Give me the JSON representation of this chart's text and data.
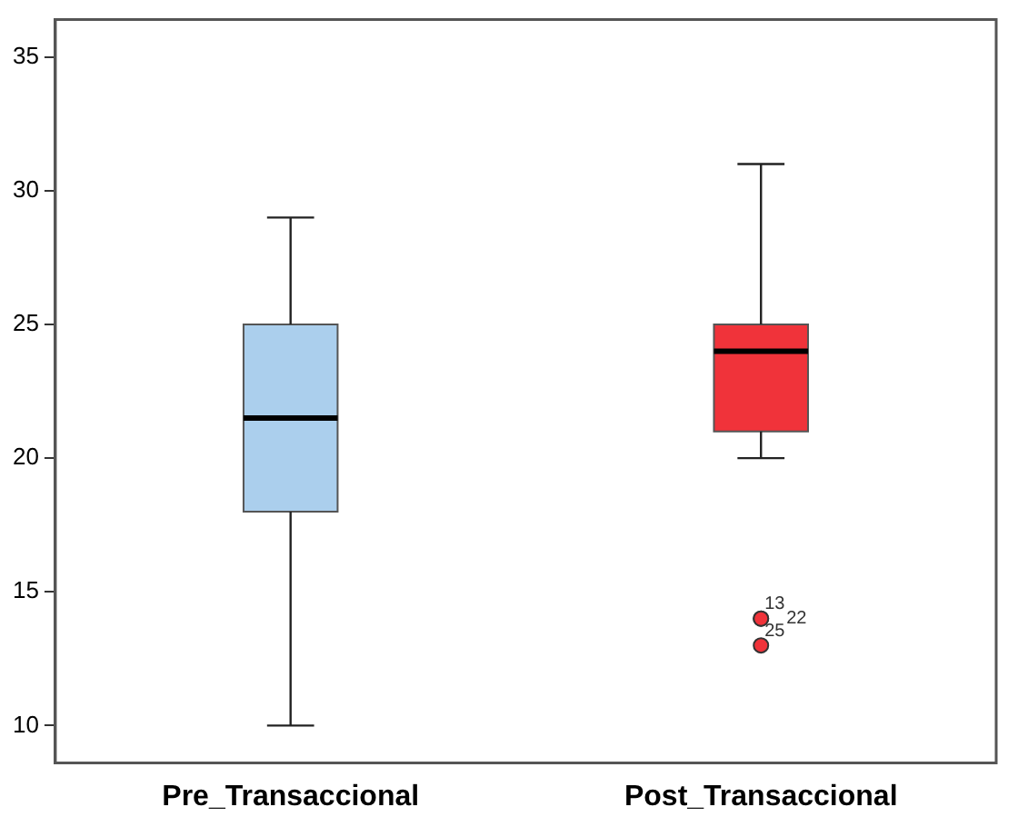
{
  "chart_data": {
    "type": "box",
    "categories": [
      "Pre_Transaccional",
      "Post_Transaccional"
    ],
    "colors": [
      "#abcfed",
      "#f0333a"
    ],
    "boxes": [
      {
        "low": 10,
        "q1": 18,
        "median": 21.5,
        "q3": 25,
        "high": 29
      },
      {
        "low": 20,
        "q1": 21,
        "median": 24,
        "q3": 25,
        "high": 31,
        "outliers": [
          14,
          14,
          13
        ]
      }
    ],
    "ylim": [
      8.6,
      36.4
    ],
    "yticks": [
      10,
      15,
      20,
      25,
      30,
      35
    ],
    "grid": false,
    "legend": false,
    "annotations": [
      "13",
      "22",
      "25"
    ]
  }
}
